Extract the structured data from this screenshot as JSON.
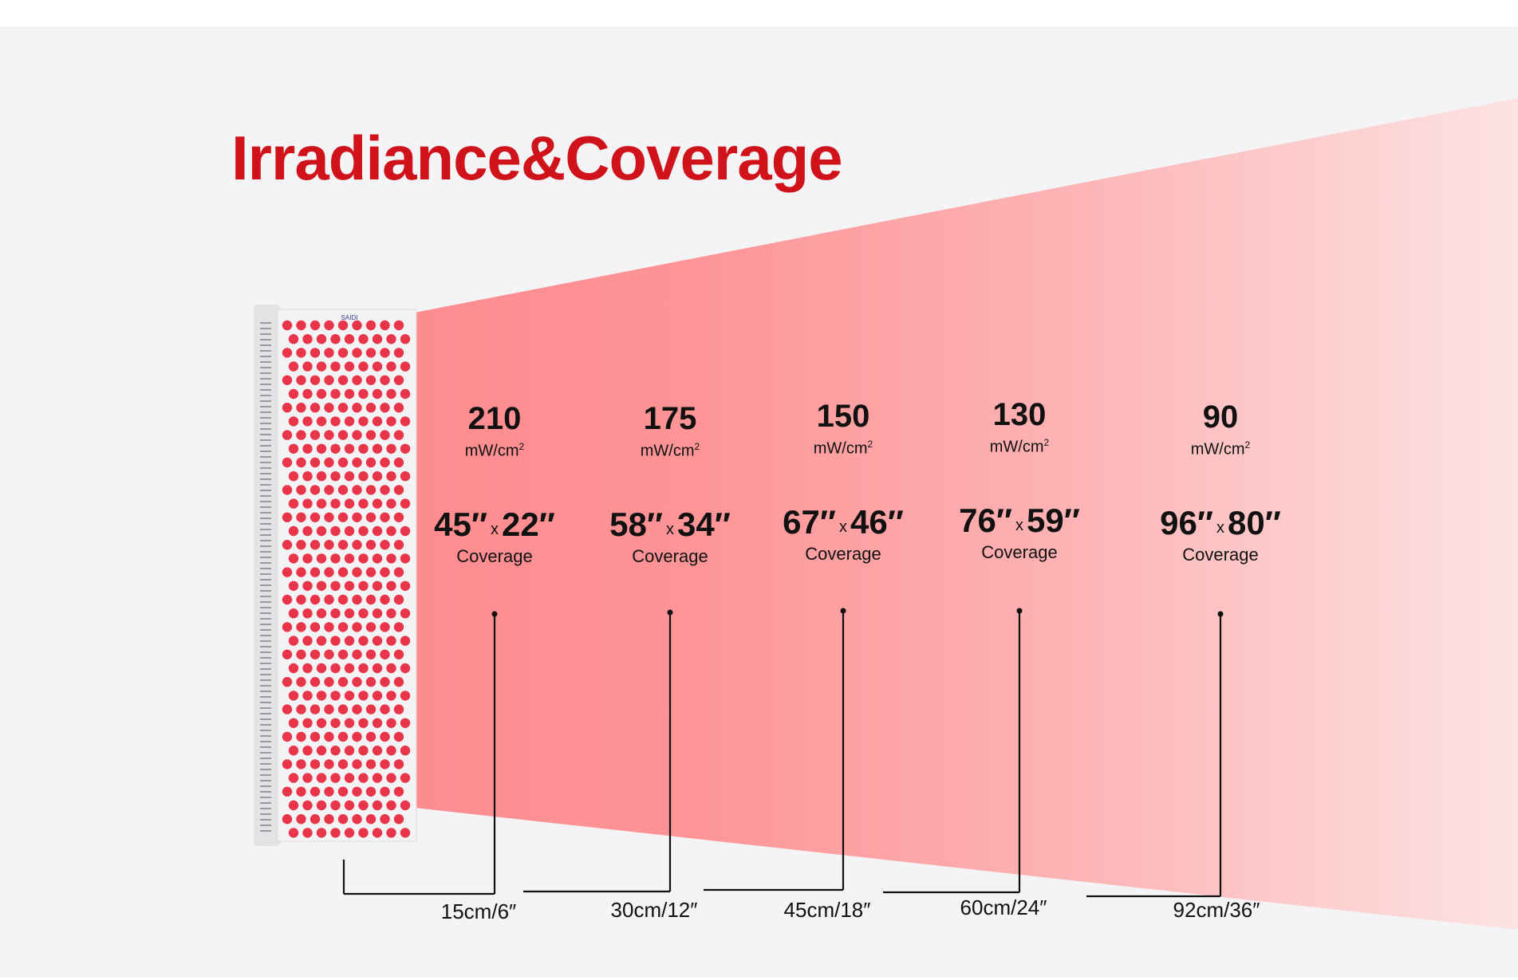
{
  "title": "Irradiance&Coverage",
  "device": {
    "brand": "SAIDI"
  },
  "colors": {
    "title": "#d0131b",
    "beam_near": "#fd8c8f",
    "beam_far": "#fde7e7",
    "panel": "#f1f1f3",
    "led": "#e8354a",
    "line": "#111111"
  },
  "measurements": [
    {
      "irradiance": "210",
      "unit": "mW/cm",
      "unit_sup": "2",
      "width": "45″",
      "x": "x",
      "height": "22″",
      "coverage_label": "Coverage",
      "distance": "15cm/6″"
    },
    {
      "irradiance": "175",
      "unit": "mW/cm",
      "unit_sup": "2",
      "width": "58″",
      "x": "x",
      "height": "34″",
      "coverage_label": "Coverage",
      "distance": "30cm/12″"
    },
    {
      "irradiance": "150",
      "unit": "mW/cm",
      "unit_sup": "2",
      "width": "67″",
      "x": "x",
      "height": "46″",
      "coverage_label": "Coverage",
      "distance": "45cm/18″"
    },
    {
      "irradiance": "130",
      "unit": "mW/cm",
      "unit_sup": "2",
      "width": "76″",
      "x": "x",
      "height": "59″",
      "coverage_label": "Coverage",
      "distance": "60cm/24″"
    },
    {
      "irradiance": "90",
      "unit": "mW/cm",
      "unit_sup": "2",
      "width": "96″",
      "x": "x",
      "height": "80″",
      "coverage_label": "Coverage",
      "distance": "92cm/36″"
    }
  ]
}
